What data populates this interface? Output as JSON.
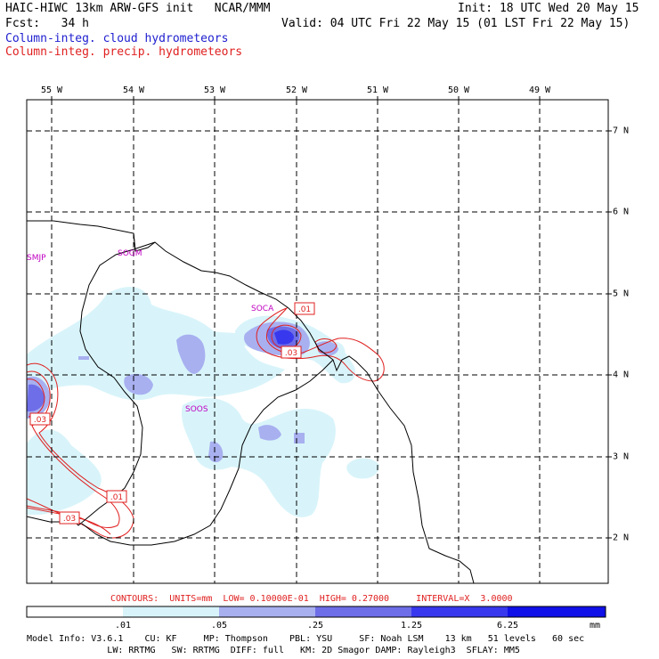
{
  "header": {
    "line1_left": "HAIC-HIWC 13km ARW-GFS init   NCAR/MMM",
    "line1_right": "Init: 18 UTC Wed 20 May 15",
    "line2_left": "Fcst:   34 h",
    "line2_right": "Valid: 04 UTC Fri 22 May 15 (01 LST Fri 22 May 15)",
    "legend_cloud": "Column-integ. cloud hydrometeors",
    "legend_precip": "Column-integ. precip. hydrometeors"
  },
  "map": {
    "lon_labels": [
      "55 W",
      "54 W",
      "53 W",
      "52 W",
      "51 W",
      "50 W",
      "49 W"
    ],
    "lat_labels": [
      "7 N",
      "6 N",
      "5 N",
      "4 N",
      "3 N",
      "2 N"
    ],
    "stations": [
      "SMJP",
      "SOGM",
      "SOCA",
      "SOOS"
    ],
    "contour_labels": [
      ".01",
      ".03",
      ".03",
      ".01",
      ".03"
    ]
  },
  "colorbar": {
    "contours_text": "CONTOURS:  UNITS=mm  LOW= 0.10000E-01  HIGH= 0.27000     INTERVAL=X  3.0000",
    "ticks": [
      ".01",
      ".05",
      ".25",
      "1.25",
      "6.25"
    ],
    "units": "mm",
    "colors": [
      "#ffffff",
      "#d8f4fa",
      "#a8b0f0",
      "#6e6ee8",
      "#3838ee",
      "#1010e8"
    ]
  },
  "footer": {
    "line1": "Model Info: V3.6.1    CU: KF     MP: Thompson    PBL: YSU     SF: Noah LSM    13 km   51 levels   60 sec",
    "line2": "               LW: RRTMG   SW: RRTMG  DIFF: full   KM: 2D Smagor DAMP: Rayleigh3  SFLAY: MM5"
  }
}
